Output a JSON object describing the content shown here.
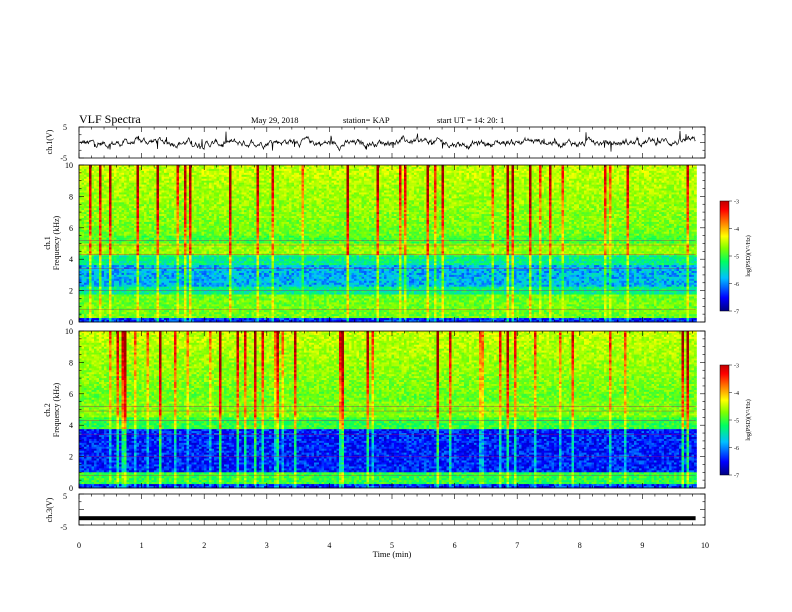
{
  "header": {
    "title": "VLF Spectra",
    "date": "May 29, 2018",
    "station": "station= KAP",
    "start_time": "start  UT  =   14: 20: 1"
  },
  "chart_data": [
    {
      "type": "line",
      "panel": "ch1-waveform",
      "ylabel": "ch.1(V)",
      "ylim": [
        -5,
        5
      ],
      "y_ticks": [
        "5",
        "-5"
      ],
      "xlim": [
        0,
        10
      ],
      "approx_mean": 0,
      "approx_amplitude": 2
    },
    {
      "type": "heatmap",
      "panel": "ch1-spectrogram",
      "ylabel_top": "ch.1",
      "ylabel": "Frequency (kHz)",
      "ylim": [
        0,
        10
      ],
      "y_ticks": [
        "0",
        "2",
        "4",
        "6",
        "8",
        "10"
      ],
      "xlim": [
        0,
        9.85
      ],
      "colorbar": {
        "label": "log(PSD)(V²/Hz)",
        "range": [
          -7,
          -3
        ],
        "ticks": [
          "-3",
          "-4",
          "-5",
          "-6",
          "-7"
        ]
      }
    },
    {
      "type": "heatmap",
      "panel": "ch2-spectrogram",
      "ylabel_top": "ch.2",
      "ylabel": "Frequency (kHz)",
      "ylim": [
        0,
        10
      ],
      "y_ticks": [
        "0",
        "2",
        "4",
        "6",
        "8",
        "10"
      ],
      "xlim": [
        0,
        9.85
      ],
      "colorbar": {
        "label": "log(PSD)(V²/Hz)",
        "range": [
          -7,
          -3
        ],
        "ticks": [
          "-3",
          "-4",
          "-5",
          "-6",
          "-7"
        ]
      }
    },
    {
      "type": "line",
      "panel": "ch3-waveform",
      "ylabel": "ch.3(V)",
      "ylim": [
        -5,
        5
      ],
      "y_ticks": [
        "5",
        "-5"
      ],
      "xlim": [
        0,
        9.85
      ],
      "approx_value": -2.8
    }
  ],
  "x_axis": {
    "label": "Time (min)",
    "ticks": [
      "0",
      "1",
      "2",
      "3",
      "4",
      "5",
      "6",
      "7",
      "8",
      "9",
      "10"
    ],
    "range": [
      0,
      10
    ]
  },
  "colors": {
    "cmap": [
      "#000080",
      "#0000ff",
      "#00c0ff",
      "#00ff60",
      "#80ff00",
      "#ffff00",
      "#ff8000",
      "#ff0000",
      "#a00000"
    ]
  }
}
